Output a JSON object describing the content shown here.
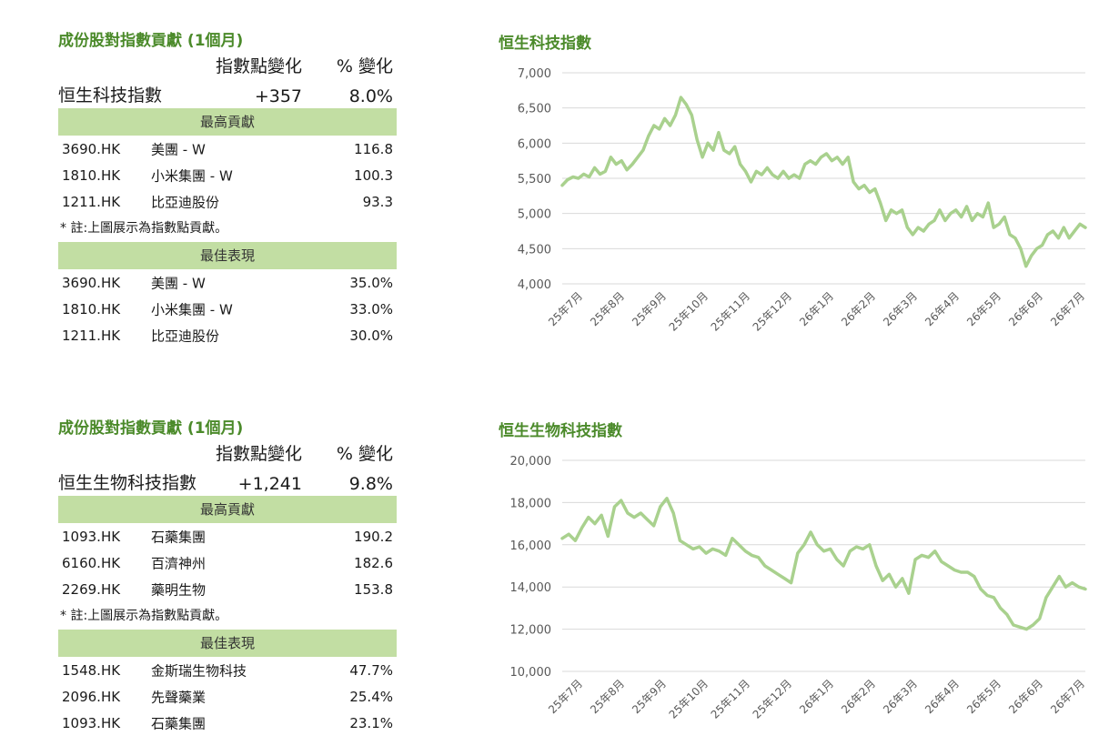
{
  "panels": [
    {
      "title": "成份股對指數貢獻 (1個月)",
      "col_change_header": "指數點變化",
      "col_pct_header": "% 變化",
      "index_name": "恒生科技指數",
      "index_change": "+357",
      "index_pct": "8.0%",
      "top_contrib_label": "最高貢獻",
      "top_contrib": [
        {
          "code": "3690.HK",
          "name": "美團 - W",
          "value": "116.8"
        },
        {
          "code": "1810.HK",
          "name": "小米集團 - W",
          "value": "100.3"
        },
        {
          "code": "1211.HK",
          "name": "比亞迪股份",
          "value": "93.3"
        }
      ],
      "note": "* 註:上圖展示為指數點貢獻。",
      "best_perf_label": "最佳表現",
      "best_perf": [
        {
          "code": "3690.HK",
          "name": "美團 - W",
          "value": "35.0%"
        },
        {
          "code": "1810.HK",
          "name": "小米集團 - W",
          "value": "33.0%"
        },
        {
          "code": "1211.HK",
          "name": "比亞迪股份",
          "value": "30.0%"
        }
      ]
    },
    {
      "title": "成份股對指數貢獻 (1個月)",
      "col_change_header": "指數點變化",
      "col_pct_header": "% 變化",
      "index_name": "恒生生物科技指數",
      "index_change": "+1,241",
      "index_pct": "9.8%",
      "top_contrib_label": "最高貢獻",
      "top_contrib": [
        {
          "code": "1093.HK",
          "name": "石藥集團",
          "value": "190.2"
        },
        {
          "code": "6160.HK",
          "name": "百濟神州",
          "value": "182.6"
        },
        {
          "code": "2269.HK",
          "name": "藥明生物",
          "value": "153.8"
        }
      ],
      "note": "* 註:上圖展示為指數點貢獻。",
      "best_perf_label": "最佳表現",
      "best_perf": [
        {
          "code": "1548.HK",
          "name": "金斯瑞生物科技",
          "value": "47.7%"
        },
        {
          "code": "2096.HK",
          "name": "先聲藥業",
          "value": "25.4%"
        },
        {
          "code": "1093.HK",
          "name": "石藥集團",
          "value": "23.1%"
        }
      ]
    }
  ],
  "chart_data": [
    {
      "type": "line",
      "title": "恒生科技指數",
      "color": "#a9d18e",
      "grid": true,
      "ylim": [
        4000,
        7000
      ],
      "yticks": [
        4000,
        4500,
        5000,
        5500,
        6000,
        6500,
        7000
      ],
      "ytick_labels": [
        "4,000",
        "4,500",
        "5,000",
        "5,500",
        "6,000",
        "6,500",
        "7,000"
      ],
      "xtick_labels": [
        "25年7月",
        "25年8月",
        "25年9月",
        "25年10月",
        "25年11月",
        "25年12月",
        "26年1月",
        "26年2月",
        "26年3月",
        "26年4月",
        "26年5月",
        "26年6月",
        "26年7月"
      ],
      "series": [
        {
          "values": [
            5400,
            5480,
            5520,
            5500,
            5560,
            5520,
            5650,
            5560,
            5600,
            5800,
            5700,
            5750,
            5620,
            5700,
            5800,
            5900,
            6100,
            6250,
            6200,
            6350,
            6250,
            6400,
            6650,
            6550,
            6400,
            6050,
            5800,
            6000,
            5900,
            6150,
            5900,
            5850,
            5950,
            5700,
            5600,
            5450,
            5600,
            5550,
            5650,
            5550,
            5500,
            5600,
            5500,
            5550,
            5500,
            5700,
            5750,
            5700,
            5800,
            5850,
            5750,
            5800,
            5700,
            5800,
            5450,
            5350,
            5400,
            5300,
            5350,
            5150,
            4900,
            5050,
            5000,
            5050,
            4800,
            4700,
            4800,
            4750,
            4850,
            4900,
            5050,
            4900,
            5000,
            5050,
            4950,
            5100,
            4900,
            5000,
            4950,
            5150,
            4800,
            4850,
            4950,
            4700,
            4650,
            4500,
            4250,
            4400,
            4500,
            4550,
            4700,
            4750,
            4650,
            4800,
            4650,
            4750,
            4850,
            4800
          ]
        }
      ]
    },
    {
      "type": "line",
      "title": "恒生生物科技指數",
      "color": "#a9d18e",
      "grid": true,
      "ylim": [
        10000,
        20000
      ],
      "yticks": [
        10000,
        12000,
        14000,
        16000,
        18000,
        20000
      ],
      "ytick_labels": [
        "10,000",
        "12,000",
        "14,000",
        "16,000",
        "18,000",
        "20,000"
      ],
      "xtick_labels": [
        "25年7月",
        "25年8月",
        "25年9月",
        "25年10月",
        "25年11月",
        "25年12月",
        "26年1月",
        "26年2月",
        "26年3月",
        "26年4月",
        "26年5月",
        "26年6月",
        "26年7月"
      ],
      "series": [
        {
          "values": [
            16300,
            16500,
            16200,
            16800,
            17300,
            17000,
            17400,
            16400,
            17800,
            18100,
            17500,
            17300,
            17500,
            17200,
            16900,
            17800,
            18200,
            17500,
            16200,
            16000,
            15800,
            15900,
            15600,
            15800,
            15700,
            15500,
            16300,
            16000,
            15700,
            15500,
            15400,
            15000,
            14800,
            14600,
            14400,
            14200,
            15600,
            16000,
            16600,
            16000,
            15700,
            15800,
            15300,
            15000,
            15700,
            15900,
            15800,
            16000,
            15000,
            14300,
            14600,
            14000,
            14400,
            13700,
            15300,
            15500,
            15400,
            15700,
            15200,
            15000,
            14800,
            14700,
            14700,
            14500,
            13900,
            13600,
            13500,
            13000,
            12700,
            12200,
            12100,
            12000,
            12200,
            12500,
            13500,
            14000,
            14500,
            14000,
            14200,
            14000,
            13900
          ]
        }
      ]
    }
  ]
}
